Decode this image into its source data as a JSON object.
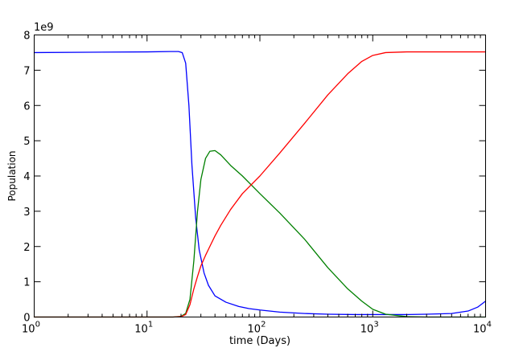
{
  "chart_data": {
    "type": "line",
    "title": "",
    "xlabel": "time (Days)",
    "ylabel": "Population",
    "xscale": "log",
    "xlim": [
      1,
      10000
    ],
    "ylim": [
      0,
      8
    ],
    "y_multiplier": "1e9",
    "x_ticks": [
      {
        "value": 1,
        "base": "10",
        "exp": "0"
      },
      {
        "value": 10,
        "base": "10",
        "exp": "1"
      },
      {
        "value": 100,
        "base": "10",
        "exp": "2"
      },
      {
        "value": 1000,
        "base": "10",
        "exp": "3"
      },
      {
        "value": 10000,
        "base": "10",
        "exp": "4"
      }
    ],
    "y_ticks": [
      "0",
      "1",
      "2",
      "3",
      "4",
      "5",
      "6",
      "7",
      "8"
    ],
    "grid": false,
    "legend": "none",
    "series": [
      {
        "color": "#0000ff",
        "x": [
          1,
          3,
          10,
          16,
          19,
          20.5,
          22,
          23.5,
          25,
          27,
          29,
          32,
          35,
          40,
          50,
          65,
          80,
          100,
          150,
          250,
          400,
          700,
          1000,
          2000,
          3000,
          5000,
          7000,
          8500,
          10000
        ],
        "y": [
          7.5,
          7.51,
          7.52,
          7.53,
          7.53,
          7.5,
          7.2,
          6.0,
          4.3,
          2.8,
          1.9,
          1.25,
          0.9,
          0.6,
          0.42,
          0.3,
          0.24,
          0.2,
          0.14,
          0.1,
          0.08,
          0.07,
          0.07,
          0.07,
          0.08,
          0.1,
          0.17,
          0.28,
          0.45
        ]
      },
      {
        "color": "#008000",
        "x": [
          1,
          10,
          17,
          20,
          22,
          24,
          26,
          28,
          30,
          33,
          36,
          40,
          45,
          55,
          70,
          100,
          150,
          250,
          400,
          600,
          800,
          1000,
          1300,
          2000,
          3000,
          10000
        ],
        "y": [
          0,
          0,
          0,
          0.02,
          0.1,
          0.5,
          1.6,
          3.0,
          3.9,
          4.5,
          4.7,
          4.72,
          4.6,
          4.3,
          4.0,
          3.5,
          2.95,
          2.2,
          1.4,
          0.8,
          0.45,
          0.22,
          0.08,
          0.01,
          0,
          0
        ]
      },
      {
        "color": "#ff0000",
        "x": [
          1,
          10,
          17,
          20,
          22,
          24,
          26,
          28,
          30,
          33,
          36,
          40,
          45,
          55,
          70,
          100,
          150,
          250,
          400,
          600,
          800,
          1000,
          1300,
          2000,
          3000,
          10000
        ],
        "y": [
          0,
          0,
          0,
          0.01,
          0.07,
          0.35,
          0.8,
          1.15,
          1.45,
          1.75,
          2.0,
          2.3,
          2.6,
          3.05,
          3.5,
          4.0,
          4.65,
          5.5,
          6.3,
          6.9,
          7.25,
          7.42,
          7.5,
          7.52,
          7.52,
          7.52
        ]
      }
    ]
  }
}
